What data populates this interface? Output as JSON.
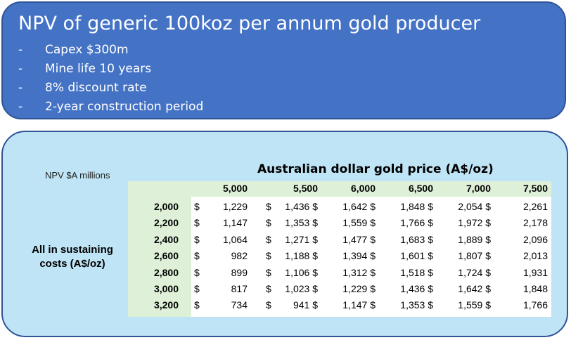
{
  "header": {
    "title": "NPV of generic 100koz per annum gold producer",
    "bullet_marker": "-",
    "bullets": [
      "Capex $300m",
      "Mine life 10 years",
      "8% discount rate",
      "2-year construction period"
    ]
  },
  "table": {
    "corner_label": "NPV $A millions",
    "column_title": "Australian dollar gold price (A$/oz)",
    "row_title": "All in sustaining costs (A$/oz)",
    "currency": "$",
    "columns": [
      "5,000",
      "5,500",
      "6,000",
      "6,500",
      "7,000",
      "7,500"
    ],
    "rows": [
      {
        "aisc": "2,000",
        "values": [
          "1,229",
          "1,436",
          "1,642",
          "1,848",
          "2,054",
          "2,261"
        ]
      },
      {
        "aisc": "2,200",
        "values": [
          "1,147",
          "1,353",
          "1,559",
          "1,766",
          "1,972",
          "2,178"
        ]
      },
      {
        "aisc": "2,400",
        "values": [
          "1,064",
          "1,271",
          "1,477",
          "1,683",
          "1,889",
          "2,096"
        ]
      },
      {
        "aisc": "2,600",
        "values": [
          "982",
          "1,188",
          "1,394",
          "1,601",
          "1,807",
          "2,013"
        ]
      },
      {
        "aisc": "2,800",
        "values": [
          "899",
          "1,106",
          "1,312",
          "1,518",
          "1,724",
          "1,931"
        ]
      },
      {
        "aisc": "3,000",
        "values": [
          "817",
          "1,023",
          "1,229",
          "1,436",
          "1,642",
          "1,848"
        ]
      },
      {
        "aisc": "3,200",
        "values": [
          "734",
          "941",
          "1,147",
          "1,353",
          "1,559",
          "1,766"
        ]
      }
    ]
  }
}
